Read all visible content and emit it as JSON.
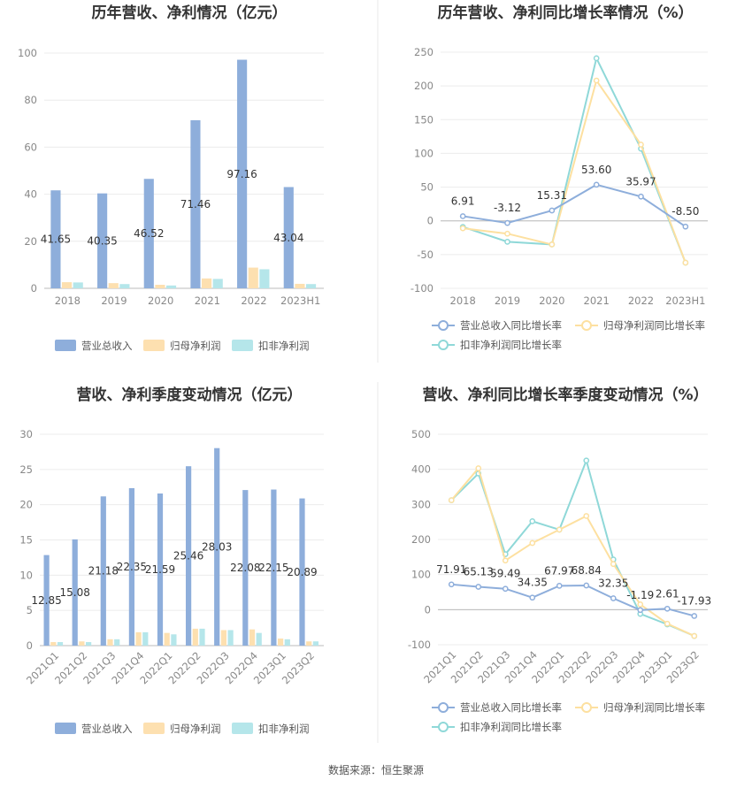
{
  "chart_data": [
    {
      "type": "bar",
      "title": "历年营收、净利情况（亿元）",
      "categories": [
        "2018",
        "2019",
        "2020",
        "2021",
        "2022",
        "2023H1"
      ],
      "ylim": [
        0,
        100
      ],
      "yticks": [
        0,
        20,
        40,
        60,
        80,
        100
      ],
      "series": [
        {
          "name": "营业总收入",
          "color": "#8eaedb",
          "values": [
            41.65,
            40.35,
            46.52,
            71.46,
            97.16,
            43.04
          ],
          "labels": [
            "41.65",
            "40.35",
            "46.52",
            "71.46",
            "97.16",
            "43.04"
          ]
        },
        {
          "name": "归母净利润",
          "color": "#fde0b0",
          "values": [
            2.6,
            2.2,
            1.5,
            4.2,
            8.8,
            1.9
          ]
        },
        {
          "name": "扣非净利润",
          "color": "#b5e6ea",
          "values": [
            2.5,
            1.8,
            1.2,
            4.0,
            8.1,
            1.8
          ]
        }
      ]
    },
    {
      "type": "line",
      "title": "历年营收、净利同比增长率情况（%）",
      "categories": [
        "2018",
        "2019",
        "2020",
        "2021",
        "2022",
        "2023H1"
      ],
      "ylim": [
        -100,
        250
      ],
      "yticks": [
        -100,
        -50,
        0,
        50,
        100,
        150,
        200,
        250
      ],
      "series": [
        {
          "name": "营业总收入同比增长率",
          "color": "#8eaedb",
          "values": [
            6.91,
            -3.12,
            15.31,
            53.6,
            35.97,
            -8.5
          ],
          "labels": [
            "6.91",
            "-3.12",
            "15.31",
            "53.60",
            "35.97",
            "-8.50"
          ]
        },
        {
          "name": "归母净利润同比增长率",
          "color": "#fde0a0",
          "values": [
            -11,
            -19,
            -35,
            208,
            113,
            -62
          ]
        },
        {
          "name": "扣非净利润同比增长率",
          "color": "#8fd8d8",
          "values": [
            -9,
            -31,
            -35,
            241,
            107,
            -62
          ]
        }
      ]
    },
    {
      "type": "bar",
      "title": "营收、净利季度变动情况（亿元）",
      "categories": [
        "2021Q1",
        "2021Q2",
        "2021Q3",
        "2021Q4",
        "2022Q1",
        "2022Q2",
        "2022Q3",
        "2022Q4",
        "2023Q1",
        "2023Q2"
      ],
      "ylim": [
        0,
        30
      ],
      "yticks": [
        0,
        5,
        10,
        15,
        20,
        25,
        30
      ],
      "series": [
        {
          "name": "营业总收入",
          "color": "#8eaedb",
          "values": [
            12.85,
            15.08,
            21.18,
            22.35,
            21.59,
            25.46,
            28.03,
            22.08,
            22.15,
            20.89
          ],
          "labels": [
            "12.85",
            "15.08",
            "21.18",
            "22.35",
            "21.59",
            "25.46",
            "28.03",
            "22.08",
            "22.15",
            "20.89"
          ]
        },
        {
          "name": "归母净利润",
          "color": "#fde0b0",
          "values": [
            0.5,
            0.6,
            0.9,
            1.9,
            1.8,
            2.4,
            2.2,
            2.3,
            1.0,
            0.6
          ]
        },
        {
          "name": "扣非净利润",
          "color": "#b5e6ea",
          "values": [
            0.5,
            0.5,
            0.9,
            1.9,
            1.6,
            2.4,
            2.2,
            1.8,
            0.9,
            0.6
          ]
        }
      ]
    },
    {
      "type": "line",
      "title": "营收、净利同比增长率季度变动情况（%）",
      "categories": [
        "2021Q1",
        "2021Q2",
        "2021Q3",
        "2021Q4",
        "2022Q1",
        "2022Q2",
        "2022Q3",
        "2022Q4",
        "2023Q1",
        "2023Q2"
      ],
      "ylim": [
        -100,
        500
      ],
      "yticks": [
        -100,
        0,
        100,
        200,
        300,
        400,
        500
      ],
      "series": [
        {
          "name": "营业总收入同比增长率",
          "color": "#8eaedb",
          "values": [
            71.91,
            65.13,
            59.49,
            34.35,
            67.97,
            68.84,
            32.35,
            -1.19,
            2.61,
            -17.93
          ],
          "labels": [
            "71.91",
            "65.13",
            "59.49",
            "34.35",
            "67.97",
            "68.84",
            "32.35",
            "-1.19",
            "2.61",
            "-17.93"
          ]
        },
        {
          "name": "归母净利润同比增长率",
          "color": "#fde0a0",
          "values": [
            312,
            403,
            140,
            190,
            228,
            267,
            130,
            15,
            -40,
            -75
          ]
        },
        {
          "name": "扣非净利润同比增长率",
          "color": "#8fd8d8",
          "values": [
            312,
            388,
            158,
            252,
            228,
            425,
            143,
            -12,
            -42,
            -75
          ]
        }
      ]
    }
  ],
  "source": "数据来源：恒生聚源"
}
